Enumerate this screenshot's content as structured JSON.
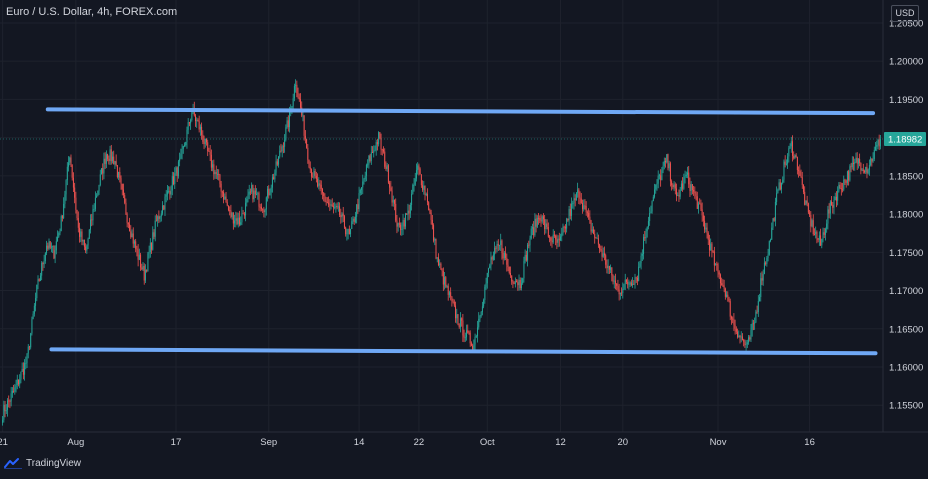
{
  "header": {
    "title": "Euro / U.S. Dollar, 4h, FOREX.com",
    "currency": "USD"
  },
  "footer": {
    "brand": "TradingView"
  },
  "colors": {
    "background": "#131722",
    "up": "#26a69a",
    "down": "#ef5350",
    "trendline": "#6fa8f5",
    "axis_text": "#d1d4dc",
    "price_badge": "#26a69a"
  },
  "chart_data": {
    "type": "candlestick",
    "symbol": "EURUSD",
    "timeframe": "4h",
    "ylim": [
      1.1515,
      1.208
    ],
    "y_ticks": [
      "1.20500",
      "1.20000",
      "1.19500",
      "1.19000",
      "1.18500",
      "1.18000",
      "1.17500",
      "1.17000",
      "1.16500",
      "1.16000",
      "1.15500"
    ],
    "x_ticks": [
      {
        "label": "21",
        "bar": 0
      },
      {
        "label": "Aug",
        "bar": 60
      },
      {
        "label": "17",
        "bar": 142
      },
      {
        "label": "Sep",
        "bar": 218
      },
      {
        "label": "14",
        "bar": 292
      },
      {
        "label": "22",
        "bar": 341
      },
      {
        "label": "Oct",
        "bar": 397
      },
      {
        "label": "12",
        "bar": 457
      },
      {
        "label": "20",
        "bar": 508
      },
      {
        "label": "Nov",
        "bar": 586
      },
      {
        "label": "16",
        "bar": 661
      }
    ],
    "last_price": "1.18982",
    "last_price_value": 1.18982,
    "trendlines": [
      {
        "name": "resistance",
        "start_bar": 37,
        "start_price": 1.1937,
        "end_bar": 713,
        "end_price": 1.1932
      },
      {
        "name": "support",
        "start_bar": 40,
        "start_price": 1.1623,
        "end_bar": 715,
        "end_price": 1.1618
      }
    ],
    "total_bars": 720,
    "path_nodes": [
      [
        0,
        1.154
      ],
      [
        10,
        1.157
      ],
      [
        20,
        1.161
      ],
      [
        28,
        1.17
      ],
      [
        36,
        1.176
      ],
      [
        42,
        1.175
      ],
      [
        48,
        1.179
      ],
      [
        55,
        1.188
      ],
      [
        62,
        1.178
      ],
      [
        68,
        1.175
      ],
      [
        76,
        1.182
      ],
      [
        85,
        1.188
      ],
      [
        92,
        1.187
      ],
      [
        100,
        1.181
      ],
      [
        108,
        1.176
      ],
      [
        116,
        1.172
      ],
      [
        126,
        1.179
      ],
      [
        136,
        1.183
      ],
      [
        146,
        1.187
      ],
      [
        155,
        1.1935
      ],
      [
        162,
        1.191
      ],
      [
        170,
        1.187
      ],
      [
        178,
        1.184
      ],
      [
        186,
        1.18
      ],
      [
        194,
        1.179
      ],
      [
        204,
        1.183
      ],
      [
        214,
        1.181
      ],
      [
        224,
        1.186
      ],
      [
        234,
        1.192
      ],
      [
        240,
        1.1975
      ],
      [
        246,
        1.192
      ],
      [
        252,
        1.186
      ],
      [
        260,
        1.183
      ],
      [
        268,
        1.181
      ],
      [
        276,
        1.18
      ],
      [
        284,
        1.177
      ],
      [
        292,
        1.182
      ],
      [
        300,
        1.187
      ],
      [
        308,
        1.19
      ],
      [
        316,
        1.185
      ],
      [
        324,
        1.178
      ],
      [
        332,
        1.18
      ],
      [
        340,
        1.186
      ],
      [
        348,
        1.182
      ],
      [
        356,
        1.174
      ],
      [
        364,
        1.17
      ],
      [
        372,
        1.1665
      ],
      [
        380,
        1.164
      ],
      [
        386,
        1.163
      ],
      [
        392,
        1.168
      ],
      [
        400,
        1.174
      ],
      [
        408,
        1.176
      ],
      [
        416,
        1.172
      ],
      [
        424,
        1.171
      ],
      [
        432,
        1.177
      ],
      [
        440,
        1.18
      ],
      [
        448,
        1.177
      ],
      [
        456,
        1.176
      ],
      [
        464,
        1.18
      ],
      [
        472,
        1.183
      ],
      [
        480,
        1.179
      ],
      [
        488,
        1.176
      ],
      [
        496,
        1.173
      ],
      [
        504,
        1.17
      ],
      [
        512,
        1.171
      ],
      [
        520,
        1.172
      ],
      [
        528,
        1.179
      ],
      [
        536,
        1.184
      ],
      [
        544,
        1.187
      ],
      [
        552,
        1.182
      ],
      [
        560,
        1.185
      ],
      [
        568,
        1.182
      ],
      [
        576,
        1.178
      ],
      [
        584,
        1.173
      ],
      [
        592,
        1.17
      ],
      [
        598,
        1.166
      ],
      [
        604,
        1.164
      ],
      [
        610,
        1.1625
      ],
      [
        616,
        1.166
      ],
      [
        622,
        1.172
      ],
      [
        628,
        1.176
      ],
      [
        634,
        1.182
      ],
      [
        640,
        1.186
      ],
      [
        646,
        1.189
      ],
      [
        652,
        1.186
      ],
      [
        658,
        1.181
      ],
      [
        664,
        1.178
      ],
      [
        670,
        1.176
      ],
      [
        676,
        1.18
      ],
      [
        684,
        1.183
      ],
      [
        692,
        1.185
      ],
      [
        700,
        1.187
      ],
      [
        708,
        1.186
      ],
      [
        714,
        1.188
      ],
      [
        719,
        1.1898
      ]
    ]
  }
}
